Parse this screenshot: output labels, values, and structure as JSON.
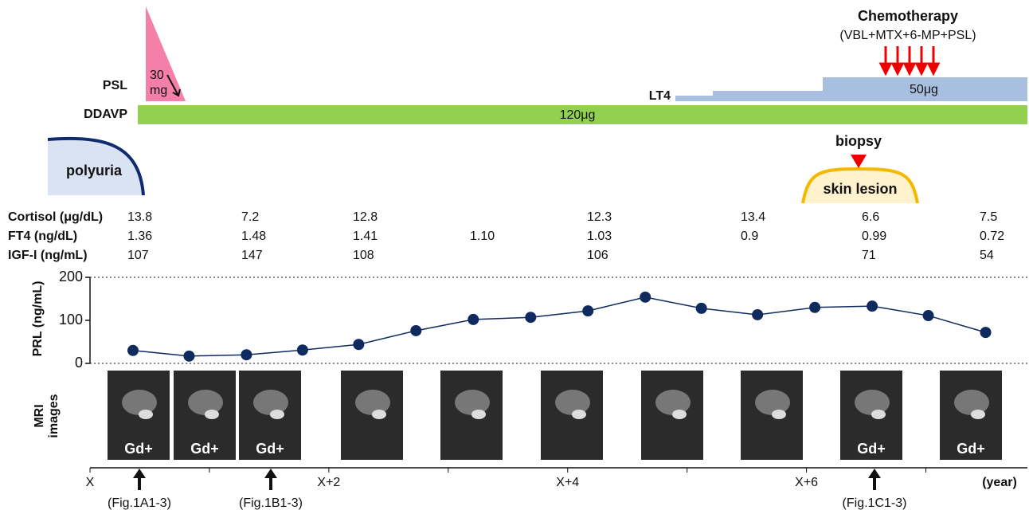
{
  "treatments": {
    "psl": {
      "label": "PSL",
      "dose_lines": [
        "30",
        "mg"
      ]
    },
    "ddavp": {
      "label": "DDAVP",
      "dose": "120μg"
    },
    "lt4": {
      "label": "LT4",
      "dose": "50μg"
    },
    "chemotherapy": {
      "title": "Chemotherapy",
      "regimen": "(VBL+MTX+6-MP+PSL)"
    }
  },
  "symptoms": {
    "polyuria": "polyuria",
    "biopsy": "biopsy",
    "skin_lesion": "skin lesion"
  },
  "labs": {
    "rows": [
      {
        "name": "Cortisol (μg/dL)",
        "values": [
          "13.8",
          "7.2",
          "12.8",
          null,
          "12.3",
          "13.4",
          "6.6",
          "7.5"
        ]
      },
      {
        "name": "FT4 (ng/dL)",
        "values": [
          "1.36",
          "1.48",
          "1.41",
          "1.10",
          "1.03",
          "0.9",
          "0.99",
          "0.72"
        ]
      },
      {
        "name": "IGF-I (ng/mL)",
        "values": [
          "107",
          "147",
          "108",
          null,
          "106",
          null,
          "71",
          "54"
        ]
      }
    ]
  },
  "mri": {
    "label_lines": [
      "MRI",
      "images"
    ],
    "image_labels": [
      "Gd+",
      "Gd+",
      "Gd+",
      null,
      null,
      null,
      null,
      null,
      "Gd+",
      "Gd+"
    ]
  },
  "figure_refs": [
    "(Fig.1A1-3)",
    "(Fig.1B1-3)",
    "(Fig.1C1-3)"
  ],
  "chart_data": {
    "type": "line",
    "ylabel": "PRL (ng/mL)",
    "xlabel": "(year)",
    "x": [
      0.36,
      0.83,
      1.31,
      1.78,
      2.25,
      2.73,
      3.21,
      3.69,
      4.17,
      4.65,
      5.12,
      5.59,
      6.07,
      6.55,
      7.02,
      7.5
    ],
    "values": [
      30,
      17,
      20,
      31,
      44,
      76,
      102,
      107,
      122,
      154,
      128,
      113,
      130,
      133,
      111,
      72
    ],
    "color": "#0f2a5e",
    "xlim": [
      0,
      7.85
    ],
    "xticks": [
      {
        "value": 0,
        "label": "X"
      },
      {
        "value": 2,
        "label": "X+2"
      },
      {
        "value": 4,
        "label": "X+4"
      },
      {
        "value": 6,
        "label": "X+6"
      }
    ],
    "minor_xticks": [
      1,
      3,
      5,
      7
    ],
    "ylim": [
      0,
      200
    ],
    "yticks": [
      0,
      100,
      200
    ]
  }
}
